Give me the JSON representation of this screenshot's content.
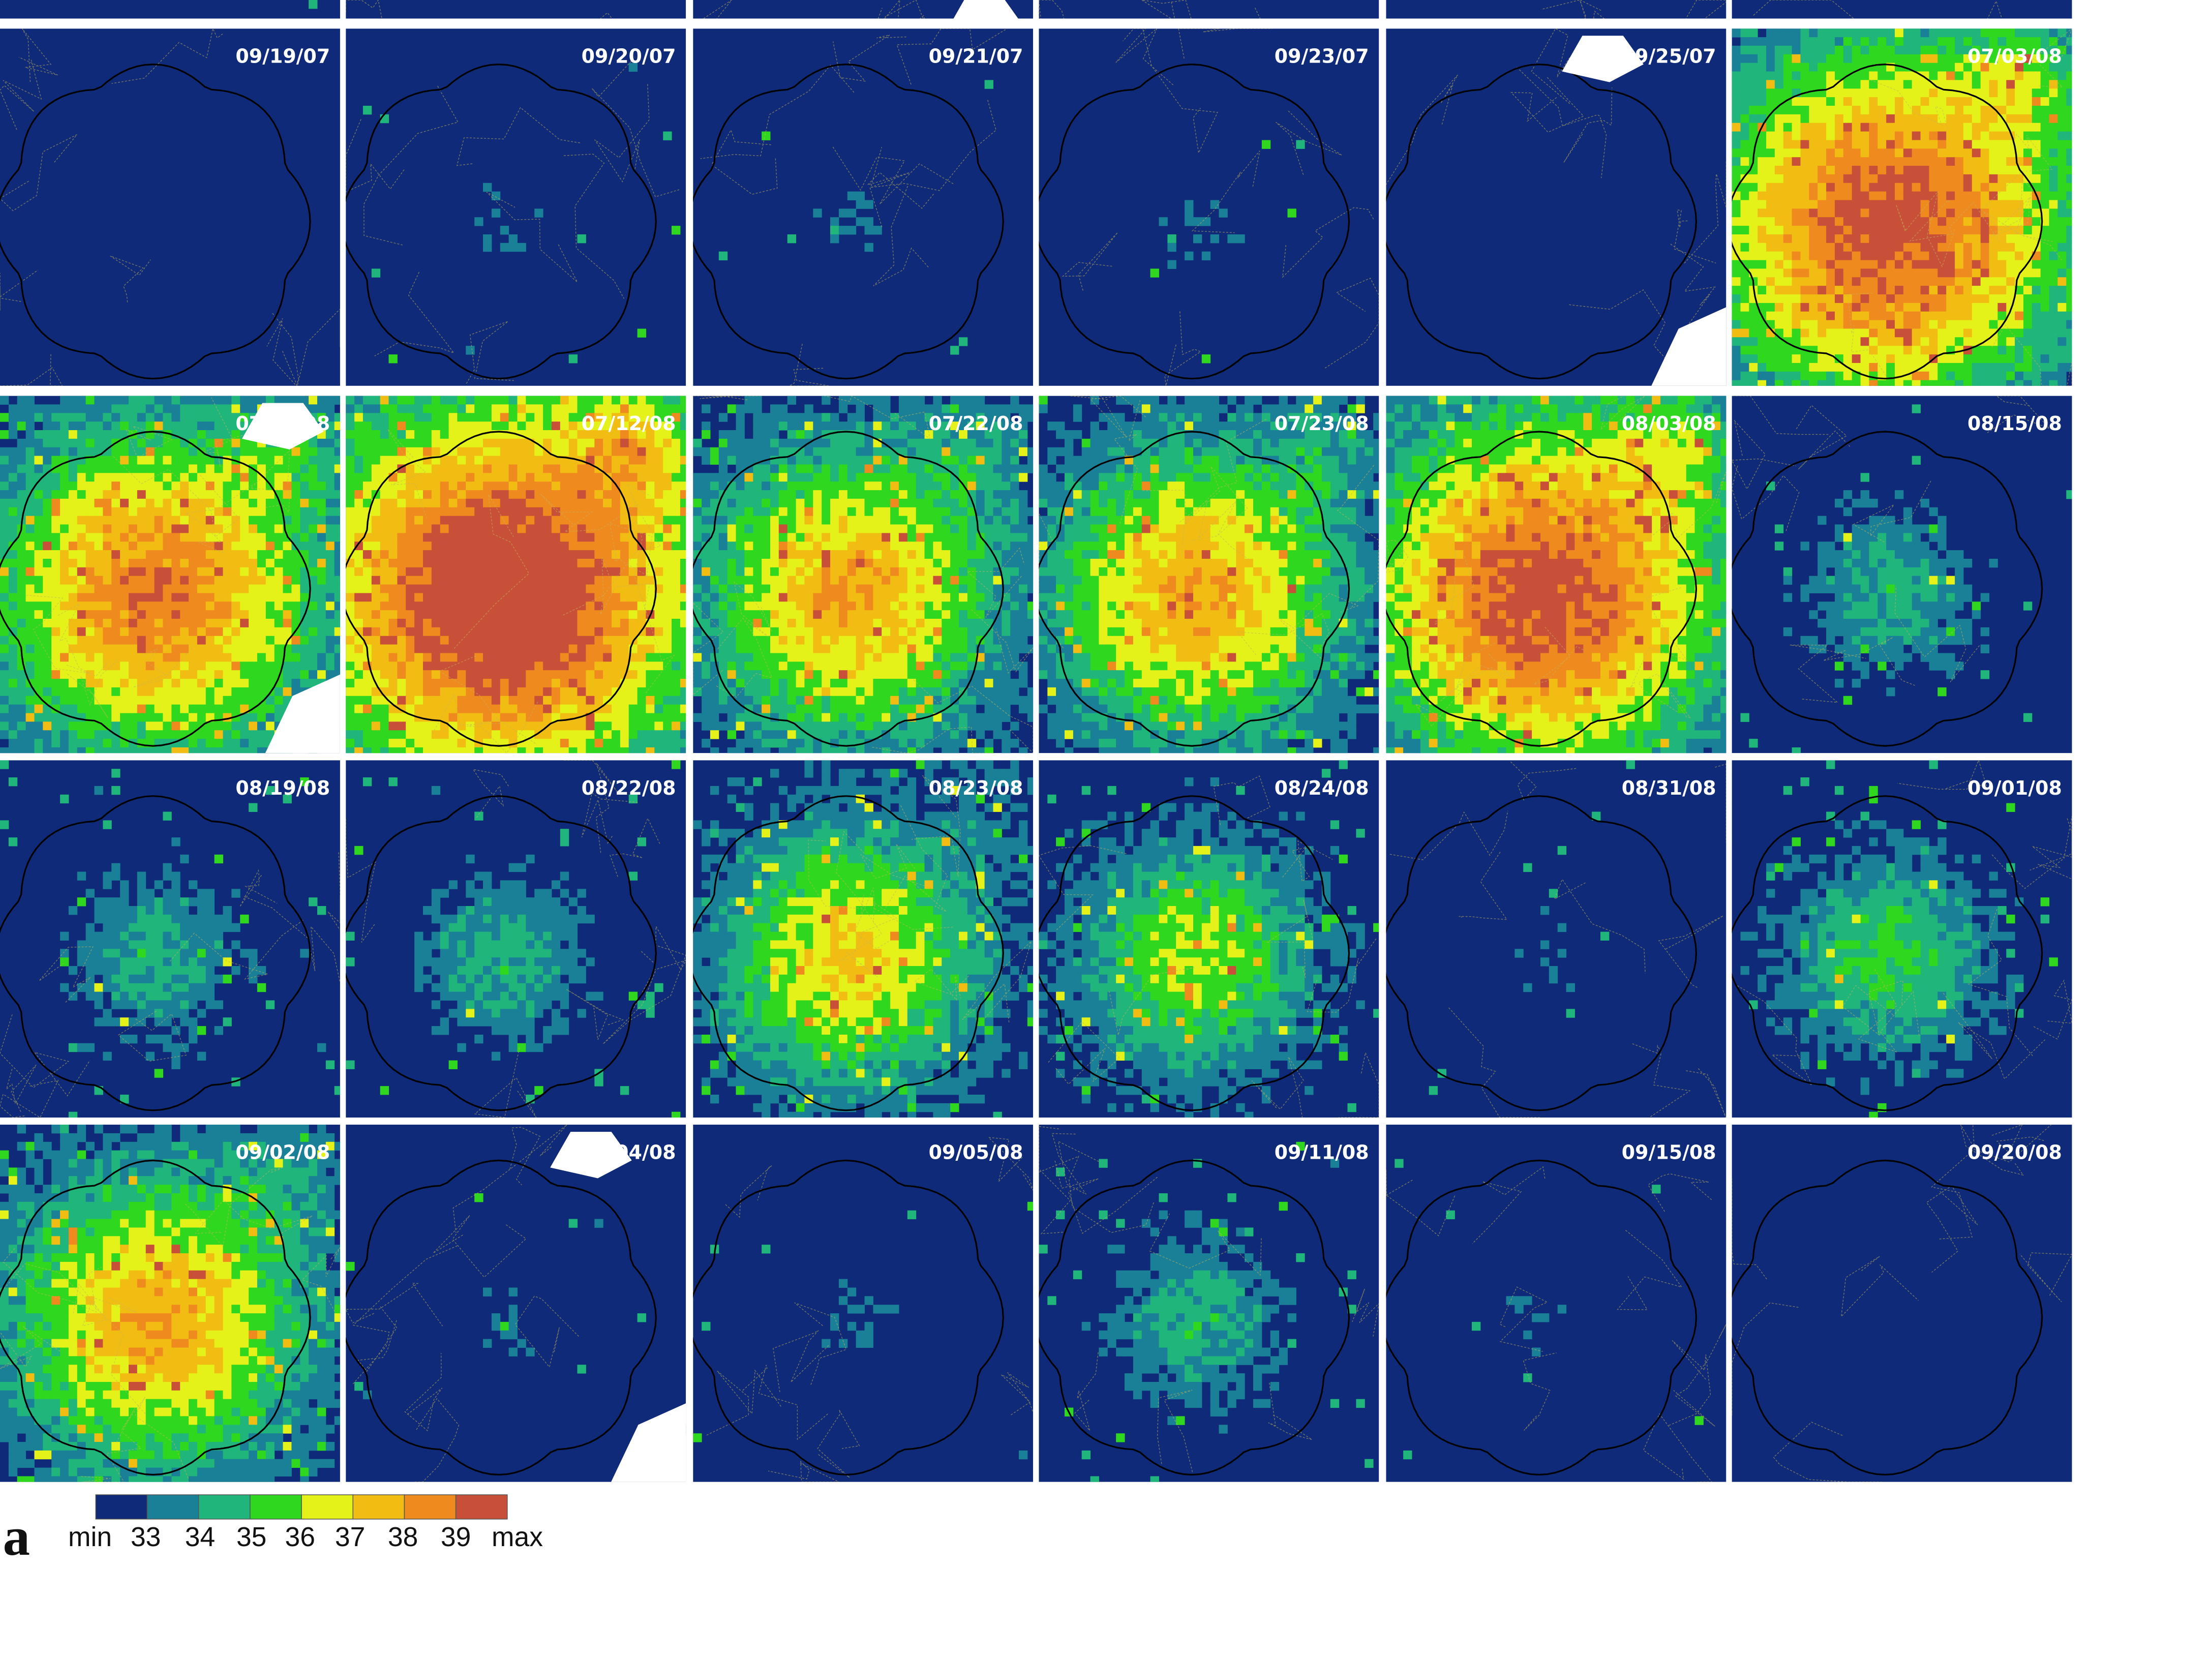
{
  "figure": {
    "panel_letter": "a",
    "rows_visible": 5,
    "cols": 6,
    "background_color": "#0f2a78",
    "outline_color": "#000000",
    "road_color": "#c7b45a"
  },
  "top_strip": {
    "dates": [
      "",
      "",
      "",
      "",
      "",
      ""
    ],
    "levels": [
      1,
      1,
      1,
      1,
      1,
      1
    ],
    "white_blobs": [
      false,
      false,
      true,
      false,
      false,
      false
    ]
  },
  "rows": [
    {
      "dates": [
        "09/19/07",
        "09/20/07",
        "09/21/07",
        "09/23/07",
        "09/25/07",
        "07/03/08"
      ],
      "levels": [
        0,
        1,
        1,
        1,
        0,
        9
      ],
      "white_blobs": [
        false,
        false,
        false,
        false,
        true,
        false
      ]
    },
    {
      "dates": [
        "07/06/08",
        "07/12/08",
        "07/22/08",
        "07/23/08",
        "08/03/08",
        "08/15/08"
      ],
      "levels": [
        8,
        10,
        7,
        7,
        9,
        3
      ],
      "white_blobs": [
        true,
        false,
        false,
        false,
        false,
        false
      ]
    },
    {
      "dates": [
        "08/19/08",
        "08/22/08",
        "08/23/08",
        "08/24/08",
        "08/31/08",
        "09/01/08"
      ],
      "levels": [
        3,
        3,
        6,
        5,
        1,
        4
      ],
      "white_blobs": [
        false,
        false,
        false,
        false,
        false,
        false
      ]
    },
    {
      "dates": [
        "09/02/08",
        "09/04/08",
        "09/05/08",
        "09/11/08",
        "09/15/08",
        "09/20/08"
      ],
      "levels": [
        7,
        1,
        1,
        3,
        1,
        0
      ],
      "white_blobs": [
        false,
        true,
        false,
        false,
        false,
        false
      ]
    }
  ],
  "legend": {
    "colors": [
      "#0f2a78",
      "#1a8097",
      "#1fb57b",
      "#2fd81e",
      "#e4f21a",
      "#f2bd12",
      "#ef8a1f",
      "#c85038"
    ],
    "labels": [
      "min",
      "33",
      "34",
      "35",
      "36",
      "37",
      "38",
      "39",
      "max"
    ]
  }
}
